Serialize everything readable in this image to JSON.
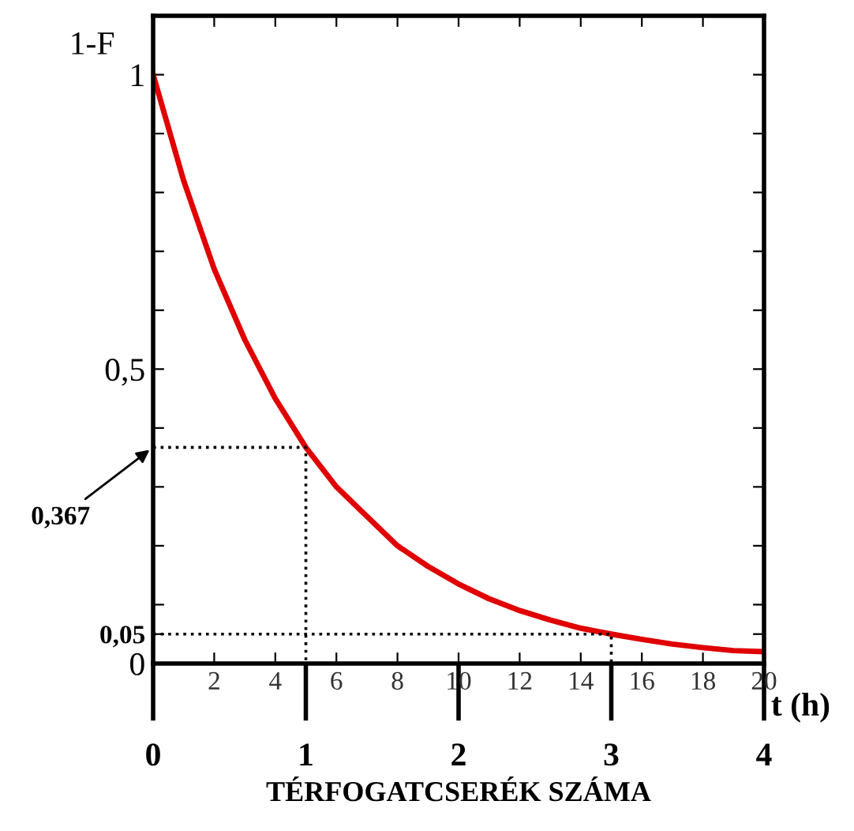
{
  "chart_data": {
    "type": "line",
    "ylabel": "1-F",
    "xlabel": "t (h)",
    "x2label": "TÉRFOGATCSERÉK SZÁMA",
    "x": [
      0,
      1,
      2,
      3,
      4,
      5,
      6,
      7,
      8,
      9,
      10,
      11,
      12,
      13,
      14,
      15,
      16,
      17,
      18,
      19,
      20
    ],
    "series": [
      {
        "color": "#e00000",
        "values": [
          1,
          0.82,
          0.67,
          0.55,
          0.45,
          0.367,
          0.3,
          0.25,
          0.2,
          0.165,
          0.135,
          0.11,
          0.09,
          0.074,
          0.06,
          0.05,
          0.041,
          0.033,
          0.027,
          0.022,
          0.02
        ]
      },
      {
        "x": [
          0,
          5,
          5
        ],
        "color": "#000000",
        "line_style": "dotted",
        "values": [
          0.367,
          0.367,
          0
        ]
      },
      {
        "x": [
          0,
          15,
          15
        ],
        "color": "#000000",
        "line_style": "dotted",
        "values": [
          0.05,
          0.05,
          0
        ]
      }
    ],
    "xlim": [
      0,
      20
    ],
    "xticks": [
      {
        "value": 0,
        "label": null
      },
      2,
      4,
      6,
      8,
      10,
      12,
      14,
      16,
      18,
      20
    ],
    "x2lim": [
      0,
      4
    ],
    "x2ticks": [
      0,
      1,
      2,
      3,
      4
    ],
    "ylim": [
      0,
      1.1
    ],
    "yticks": [
      0,
      {
        "value": 0.05,
        "label": "0,05"
      },
      {
        "value": 0.1,
        "label": null
      },
      {
        "value": 0.2,
        "label": null
      },
      {
        "value": 0.3,
        "label": null
      },
      {
        "value": 0.4,
        "label": null
      },
      {
        "value": 0.5,
        "label": "0,5"
      },
      {
        "value": 0.6,
        "label": null
      },
      {
        "value": 0.7,
        "label": null
      },
      {
        "value": 0.8,
        "label": null
      },
      {
        "value": 0.9,
        "label": null
      },
      1
    ],
    "annotations": [
      "0,367"
    ],
    "grid": false,
    "legend": false,
    "marker": "none",
    "line_style": "solid"
  }
}
